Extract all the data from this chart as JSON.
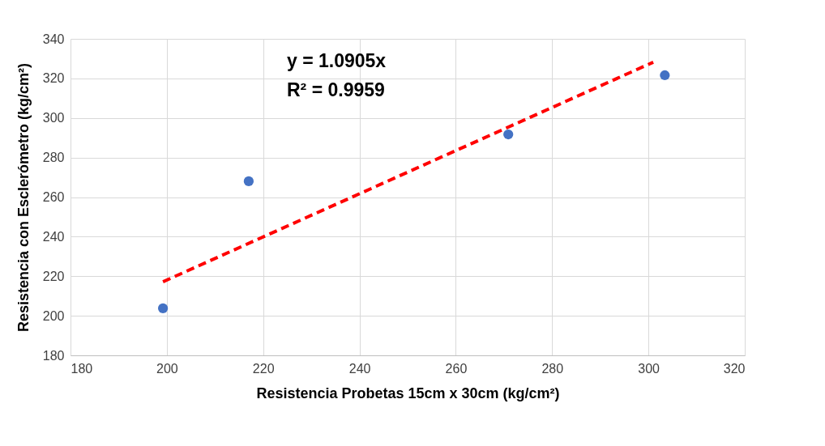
{
  "chart_data": {
    "type": "scatter",
    "xlabel": "Resistencia Probetas 15cm x 30cm  (kg/cm²)",
    "ylabel": "Resistencia con Esclerómetro  (kg/cm²)",
    "annotations": [
      "y = 1.0905x",
      "R² = 0.9959"
    ],
    "series": [
      {
        "color": "#4472c4",
        "x": [
          199.2,
          217.0,
          270.9,
          303.4
        ],
        "values": [
          203.8,
          268.0,
          291.7,
          321.6
        ],
        "marker": "circle"
      },
      {
        "type": "line",
        "color": "#ff0000",
        "x": [
          199.2,
          301.0
        ],
        "values": [
          217.2,
          328.2
        ],
        "line_style": "dashed",
        "marker": "none"
      }
    ],
    "xlim": [
      180,
      320
    ],
    "xticks": [
      180,
      200,
      220,
      240,
      260,
      280,
      300,
      320
    ],
    "ylim": [
      180,
      340
    ],
    "yticks": [
      180,
      200,
      220,
      240,
      260,
      280,
      300,
      320,
      340
    ],
    "grid": true
  }
}
